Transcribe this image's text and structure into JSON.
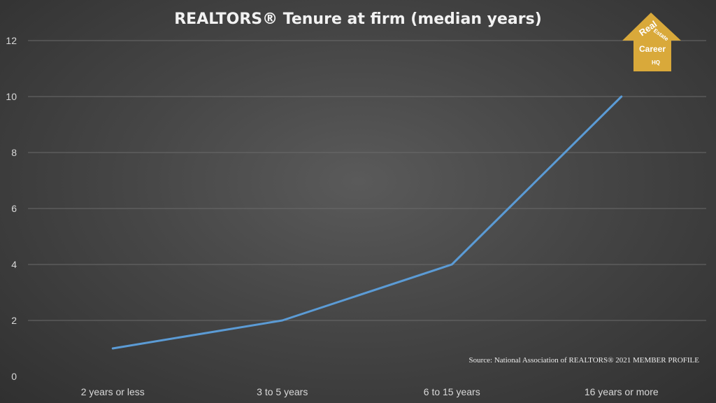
{
  "chart_data": {
    "type": "line",
    "title": "REALTORS® Tenure at firm (median years)",
    "categories": [
      "2 years or less",
      "3 to 5 years",
      "6 to 15 years",
      "16 years or more"
    ],
    "series": [
      {
        "values": [
          1,
          2,
          4,
          10
        ]
      }
    ],
    "ylim": [
      0,
      12
    ],
    "yticks": [
      0,
      2,
      4,
      6,
      8,
      10,
      12
    ],
    "grid": true,
    "legend": "none",
    "line_color": "#5b9bd5"
  },
  "source": "Source: National Association of REALTORS®  2021 MEMBER PROFILE",
  "logo": {
    "line1": "Real",
    "line2": "Estate",
    "line3": "Career",
    "line4": "HQ",
    "color": "#d9a93a"
  }
}
